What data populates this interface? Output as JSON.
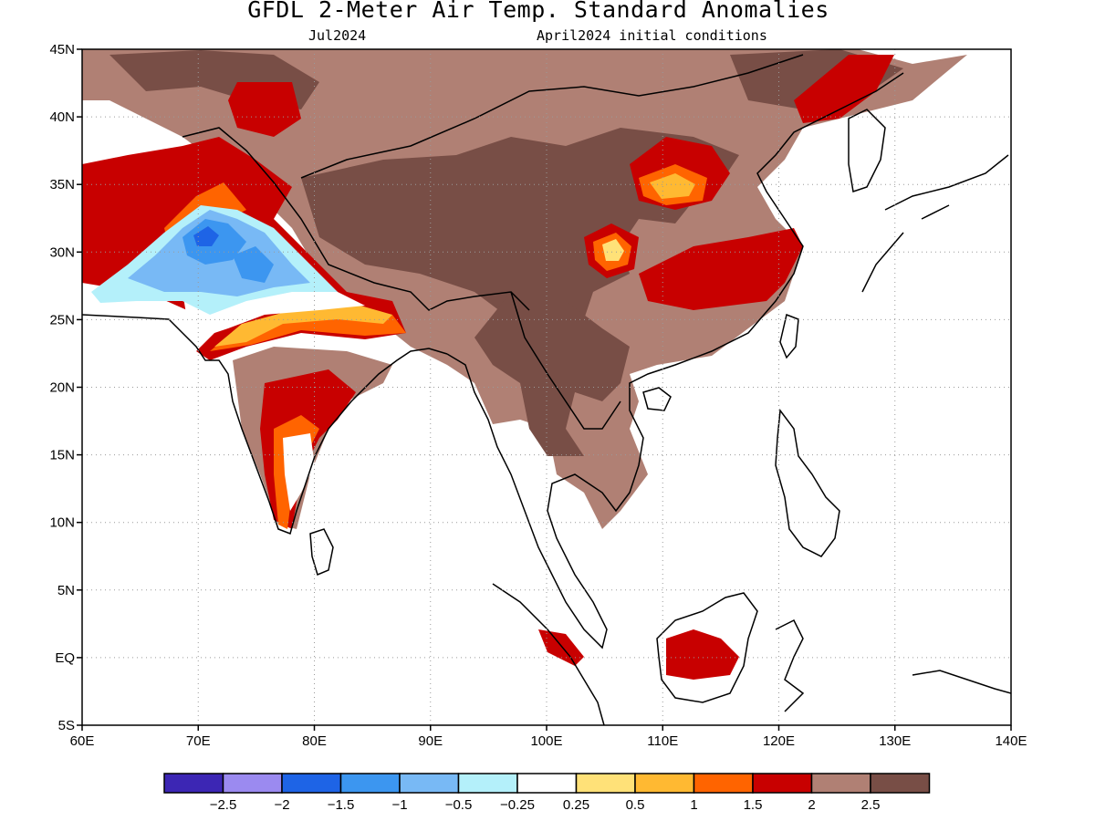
{
  "header": {
    "title": "GFDL 2-Meter Air Temp. Standard Anomalies",
    "valid_month": "Jul2024",
    "init": "April2024 initial conditions"
  },
  "map": {
    "lon_range": [
      60,
      140
    ],
    "lat_range": [
      -5,
      45
    ],
    "lon_labels": [
      "60E",
      "70E",
      "80E",
      "90E",
      "100E",
      "110E",
      "120E",
      "130E",
      "140E"
    ],
    "lat_labels": [
      "45N",
      "40N",
      "35N",
      "30N",
      "25N",
      "20N",
      "15N",
      "10N",
      "5N",
      "EQ",
      "5S"
    ],
    "grid": "dotted"
  },
  "colorbar": {
    "colors": [
      "#3c26b4",
      "#9b8af0",
      "#1e64e6",
      "#3c96f0",
      "#78b9f5",
      "#b4f0fa",
      "#ffffff",
      "#ffe178",
      "#ffb932",
      "#ff6400",
      "#c80000",
      "#b08074",
      "#784e46"
    ],
    "labels": [
      "-2.5",
      "-2",
      "-1.5",
      "-1",
      "-0.5",
      "-0.25",
      "0.25",
      "0.5",
      "1",
      "1.5",
      "2",
      "2.5"
    ]
  }
}
